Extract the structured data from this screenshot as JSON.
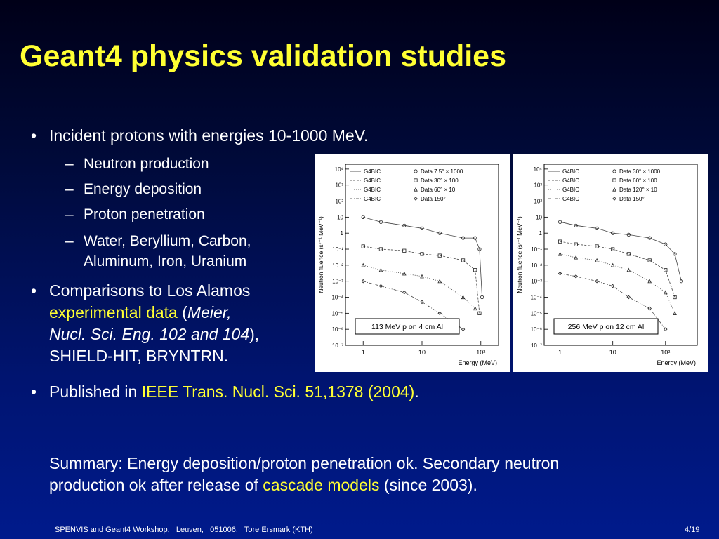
{
  "title": "Geant4 physics validation studies",
  "bullets": {
    "b1": "Incident protons with energies 10-1000 MeV.",
    "sub": [
      "Neutron production",
      "Energy deposition",
      "Proton penetration",
      "Water, Beryllium, Carbon,",
      "Aluminum, Iron, Uranium"
    ],
    "b2_l1": "Comparisons to Los Alamos",
    "b2_l2_hl": "experimental data",
    "b2_l2_open": " (",
    "b2_l2_it": "Meier,",
    "b2_l3_it": "Nucl. Sci. Eng. 102 and 104",
    "b2_l3_close": "),",
    "b2_l4": "SHIELD-HIT, BRYNTRN.",
    "b3_pre": "Published in ",
    "b3_hl": "IEEE Trans. Nucl. Sci. 51,1378 (2004)",
    "b3_post": "."
  },
  "summary": {
    "l1": "Summary: Energy deposition/proton penetration ok. Secondary neutron",
    "l2_pre": "production ok after release of ",
    "l2_hl": "cascade models",
    "l2_post": " (since 2003)."
  },
  "footer": {
    "text": "SPENVIS and Geant4 Workshop,   Leuven,   051006,   Tore Ersmark (KTH)",
    "page": "4/19"
  },
  "colors": {
    "title": "#ffff33",
    "highlight": "#ffff33",
    "text": "#ffffff"
  },
  "chart_data": [
    {
      "type": "scatter",
      "ylabel": "Neutron fluence (sr⁻¹ MeV⁻¹)",
      "xlabel": "Energy (MeV)",
      "x_scale": "log",
      "y_scale": "log",
      "xlim": [
        0.5,
        200
      ],
      "ylim": [
        1e-07,
        20000
      ],
      "x_ticks": [
        "1",
        "10",
        "10²"
      ],
      "y_ticks": [
        "10⁻⁷",
        "10⁻⁶",
        "10⁻⁵",
        "10⁻⁴",
        "10⁻³",
        "10⁻²",
        "10⁻¹",
        "1",
        "10",
        "10²",
        "10³",
        "10⁴"
      ],
      "legend": {
        "models": [
          "G4BIC",
          "G4BIC",
          "G4BIC",
          "G4BIC"
        ],
        "data": [
          "Data   7.5° × 1000",
          "Data   30° × 100",
          "Data   60° × 10",
          "Data   150°"
        ]
      },
      "annotation": "113 MeV p on 4 cm Al",
      "series": [
        {
          "marker": "circle",
          "x": [
            1,
            2,
            5,
            10,
            20,
            50,
            80,
            95,
            105
          ],
          "y": [
            10,
            5,
            3,
            2,
            1,
            0.5,
            0.5,
            0.1,
            0.0001
          ]
        },
        {
          "marker": "square",
          "x": [
            1,
            2,
            5,
            10,
            20,
            50,
            80,
            95
          ],
          "y": [
            0.15,
            0.1,
            0.08,
            0.05,
            0.04,
            0.02,
            0.005,
            1e-05
          ]
        },
        {
          "marker": "triangle",
          "x": [
            1,
            2,
            5,
            10,
            20,
            50,
            80
          ],
          "y": [
            0.01,
            0.005,
            0.003,
            0.002,
            0.001,
            0.0001,
            2e-05
          ]
        },
        {
          "marker": "diamond",
          "x": [
            1,
            2,
            5,
            10,
            20,
            50
          ],
          "y": [
            0.001,
            0.0005,
            0.0002,
            5e-05,
            1e-05,
            1e-06
          ]
        }
      ]
    },
    {
      "type": "scatter",
      "ylabel": "Neutron fluence (sr⁻¹ MeV⁻¹)",
      "xlabel": "Energy (MeV)",
      "x_scale": "log",
      "y_scale": "log",
      "xlim": [
        0.5,
        400
      ],
      "ylim": [
        1e-07,
        20000
      ],
      "x_ticks": [
        "1",
        "10",
        "10²"
      ],
      "y_ticks": [
        "10⁻⁷",
        "10⁻⁶",
        "10⁻⁵",
        "10⁻⁴",
        "10⁻³",
        "10⁻²",
        "10⁻¹",
        "1",
        "10",
        "10²",
        "10³",
        "10⁴"
      ],
      "legend": {
        "models": [
          "G4BIC",
          "G4BIC",
          "G4BIC",
          "G4BIC"
        ],
        "data": [
          "Data   30° × 1000",
          "Data   60° × 100",
          "Data   120° × 10",
          "Data   150°"
        ]
      },
      "annotation": "256 MeV p on 12 cm Al",
      "series": [
        {
          "marker": "circle",
          "x": [
            1,
            2,
            5,
            10,
            20,
            50,
            100,
            150,
            200
          ],
          "y": [
            5,
            3,
            2,
            1,
            0.8,
            0.5,
            0.2,
            0.05,
            0.001
          ]
        },
        {
          "marker": "square",
          "x": [
            1,
            2,
            5,
            10,
            20,
            50,
            100,
            150
          ],
          "y": [
            0.3,
            0.2,
            0.15,
            0.1,
            0.05,
            0.02,
            0.005,
            0.0001
          ]
        },
        {
          "marker": "triangle",
          "x": [
            1,
            2,
            5,
            10,
            20,
            50,
            100,
            150
          ],
          "y": [
            0.05,
            0.03,
            0.02,
            0.01,
            0.005,
            0.001,
            0.0002,
            1e-05
          ]
        },
        {
          "marker": "diamond",
          "x": [
            1,
            2,
            5,
            10,
            20,
            50,
            100
          ],
          "y": [
            0.003,
            0.002,
            0.001,
            0.0005,
            0.0001,
            2e-05,
            1e-06
          ]
        }
      ]
    }
  ]
}
